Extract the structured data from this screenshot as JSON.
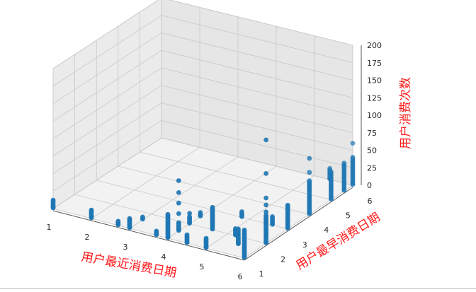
{
  "chart_data": {
    "type": "scatter",
    "dimensions": 3,
    "xlabel": "用户最近消费日期",
    "ylabel": "用户最早消费日期",
    "zlabel": "用户消费次数",
    "xlim": [
      1,
      6
    ],
    "ylim": [
      1,
      6
    ],
    "zlim": [
      0,
      200
    ],
    "xticks": [
      "1",
      "2",
      "3",
      "4",
      "5",
      "6"
    ],
    "yticks": [
      "1",
      "2",
      "3",
      "4",
      "5",
      "6"
    ],
    "zticks": [
      "0",
      "25",
      "50",
      "75",
      "100",
      "125",
      "150",
      "175",
      "200"
    ],
    "grid": true,
    "marker_color": "#1f77b4",
    "label_color": "#ff1a1a",
    "series": [
      {
        "points": [
          {
            "x": 1.0,
            "y": 1.0,
            "z": [
              1,
              2,
              3,
              5,
              8,
              10,
              12
            ]
          },
          {
            "x": 2.0,
            "y": 1.0,
            "z": [
              1,
              2,
              4,
              6,
              8,
              10,
              12
            ]
          },
          {
            "x": 2.7,
            "y": 1.0,
            "z": [
              1,
              2,
              4,
              6
            ]
          },
          {
            "x": 3.0,
            "y": 1.0,
            "z": [
              1,
              2,
              4,
              6,
              8,
              10,
              12,
              14
            ]
          },
          {
            "x": 3.0,
            "y": 1.6,
            "z": [
              1,
              2,
              4
            ]
          },
          {
            "x": 3.7,
            "y": 1.0,
            "z": [
              1,
              2,
              4,
              6
            ]
          },
          {
            "x": 4.0,
            "y": 1.0,
            "z": [
              1,
              2,
              4,
              6,
              8,
              10,
              12,
              14,
              16,
              18,
              20,
              22,
              24,
              26,
              28,
              30,
              32,
              34
            ]
          },
          {
            "x": 4.0,
            "y": 1.5,
            "z": [
              1,
              2,
              4,
              6,
              8,
              10,
              12,
              25,
              40,
              55,
              72
            ]
          },
          {
            "x": 4.0,
            "y": 2.0,
            "z": [
              1,
              2,
              4,
              6,
              8,
              10,
              15
            ]
          },
          {
            "x": 4.0,
            "y": 2.5,
            "z": [
              1,
              2,
              4,
              6
            ]
          },
          {
            "x": 4.5,
            "y": 1.0,
            "z": [
              1,
              2,
              4,
              6,
              8,
              10,
              12
            ]
          },
          {
            "x": 4.6,
            "y": 2.0,
            "z": [
              1,
              2,
              4,
              6,
              8,
              10,
              12,
              14,
              16,
              18,
              20,
              22,
              24,
              26,
              28,
              30,
              32
            ]
          },
          {
            "x": 4.8,
            "y": 3.0,
            "z": [
              1,
              2,
              4,
              6,
              8
            ]
          },
          {
            "x": 5.0,
            "y": 1.0,
            "z": [
              1,
              2,
              4,
              6,
              8,
              10,
              12,
              14
            ]
          },
          {
            "x": 5.2,
            "y": 2.0,
            "z": [
              1,
              2,
              4,
              6,
              8,
              10
            ]
          },
          {
            "x": 5.5,
            "y": 1.6,
            "z": [
              1,
              2,
              4,
              6,
              8,
              10,
              12,
              14,
              16,
              18,
              20,
              22
            ]
          },
          {
            "x": 5.6,
            "y": 3.0,
            "z": [
              1,
              2,
              4,
              6,
              8,
              10,
              12
            ]
          },
          {
            "x": 6.0,
            "y": 1.0,
            "z": [
              1,
              2,
              4,
              6,
              8,
              10,
              12,
              14,
              16,
              18,
              20,
              22,
              24,
              26,
              28,
              30,
              32,
              34,
              36,
              38,
              40
            ]
          },
          {
            "x": 6.0,
            "y": 2.0,
            "z": [
              1,
              2,
              4,
              6,
              8,
              10,
              12,
              14,
              16,
              18,
              20,
              22,
              24,
              26,
              28,
              30,
              32,
              34,
              36,
              38,
              40,
              45,
              55,
              65,
              100,
              148
            ]
          },
          {
            "x": 6.0,
            "y": 3.0,
            "z": [
              1,
              2,
              4,
              6,
              8,
              10,
              12,
              14,
              16,
              18,
              20,
              22,
              24,
              26,
              28,
              30,
              32,
              34
            ]
          },
          {
            "x": 6.0,
            "y": 4.0,
            "z": [
              1,
              2,
              4,
              6,
              8,
              10,
              12,
              14,
              16,
              18,
              20,
              22,
              24,
              26,
              28,
              30,
              32,
              34,
              36,
              38,
              40,
              42,
              44,
              46,
              48,
              60,
              80
            ]
          },
          {
            "x": 6.0,
            "y": 5.0,
            "z": [
              1,
              2,
              4,
              6,
              8,
              10,
              12,
              14,
              16,
              18,
              20,
              22,
              24,
              26,
              28,
              30,
              32,
              34,
              36,
              38,
              40
            ]
          },
          {
            "x": 6.0,
            "y": 5.6,
            "z": [
              1,
              2,
              4,
              6,
              8,
              10,
              12,
              14,
              16,
              18,
              20,
              22,
              24,
              26,
              28,
              30,
              32,
              34,
              36,
              38,
              40
            ]
          },
          {
            "x": 6.0,
            "y": 6.0,
            "z": [
              1,
              2,
              4,
              6,
              8,
              10,
              12,
              14,
              16,
              18,
              20,
              22,
              24,
              26,
              28,
              30,
              32,
              34,
              36,
              38,
              40,
              60
            ]
          },
          {
            "x": 5.4,
            "y": 6.0,
            "z": [
              1,
              2,
              4,
              6,
              8,
              10,
              12,
              14,
              16
            ]
          }
        ]
      }
    ]
  }
}
